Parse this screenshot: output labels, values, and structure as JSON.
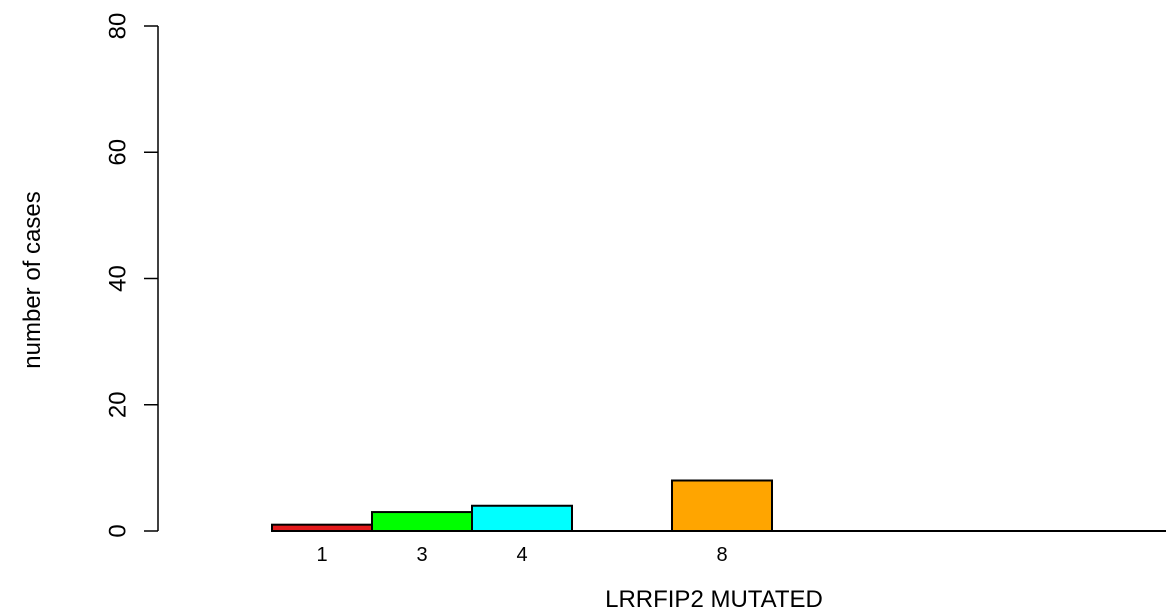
{
  "chart_data": {
    "type": "bar",
    "xlabel": "LRRFIP2 MUTATED",
    "ylabel": "number of cases",
    "ylim": [
      0,
      80
    ],
    "yticks": [
      "0",
      "20",
      "40",
      "60",
      "80"
    ],
    "grid": false,
    "bars": [
      {
        "label": "1",
        "value": 1,
        "color": "#e31a1c"
      },
      {
        "label": "3",
        "value": 3,
        "color": "#00ff00"
      },
      {
        "label": "4",
        "value": 4,
        "color": "#00ffff"
      },
      {
        "label": "",
        "value": 0,
        "color": "#ffffff"
      },
      {
        "label": "8",
        "value": 8,
        "color": "#ffa500"
      },
      {
        "label": "",
        "value": 0,
        "color": "#ffffff"
      },
      {
        "label": "",
        "value": 0,
        "color": "#ffffff"
      },
      {
        "label": "",
        "value": 0,
        "color": "#ffffff"
      },
      {
        "label": "",
        "value": 0,
        "color": "#ffffff"
      }
    ]
  }
}
